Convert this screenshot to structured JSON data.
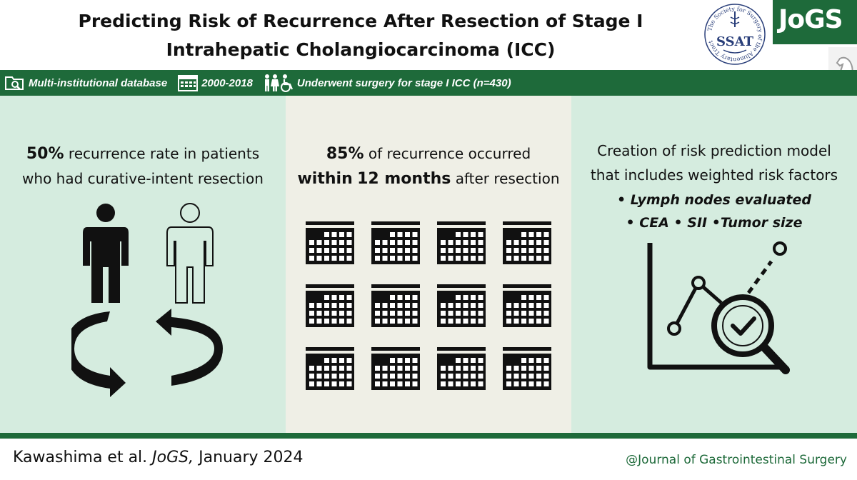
{
  "header": {
    "title_line1": "Predicting Risk of Recurrence After Resection of Stage I",
    "title_line2": "Intrahepatic Cholangiocarcinoma (ICC)",
    "seal_text": "SSAT",
    "seal_ring_text": "The Society for Surgery of the Alimentary Tract",
    "journal_logo": "JoGS"
  },
  "infobar": {
    "items": [
      {
        "icon": "database-folder-icon",
        "label": "Multi-institutional database"
      },
      {
        "icon": "calendar-icon",
        "label": "2000-2018"
      },
      {
        "icon": "patients-icon",
        "label": "Underwent surgery for stage I ICC (n=430)"
      }
    ],
    "background": "#1e6a3a"
  },
  "panels": {
    "recurrence_rate": {
      "value": "50%",
      "line1_rest": " recurrence rate in patients",
      "line2": "who had curative-intent resection",
      "icons": [
        "person-filled-icon",
        "person-outline-icon",
        "recurrence-cycle-icon"
      ]
    },
    "recurrence_timing": {
      "value": "85%",
      "line1_rest": " of recurrence occurred",
      "within": "within",
      "months": "12 months",
      "line2_rest": " after resection",
      "calendar_count": 12,
      "calendar_icon": "calendar-icon"
    },
    "risk_model": {
      "line1": "Creation of risk prediction model",
      "line2": "that includes weighted risk factors",
      "bullet_line1": "• Lymph nodes evaluated",
      "bullet_line2": "• CEA • SII •Tumor size",
      "icon": "chart-magnifier-check-icon"
    }
  },
  "footer": {
    "authors": "Kawashima et al. ",
    "journal": "JoGS,",
    "date": " January 2024",
    "handle": "@Journal of Gastrointestinal Surgery"
  },
  "colors": {
    "brand_green": "#1e6a3a",
    "panel_green": "#d5ecdf",
    "panel_beige": "#efefe6"
  }
}
